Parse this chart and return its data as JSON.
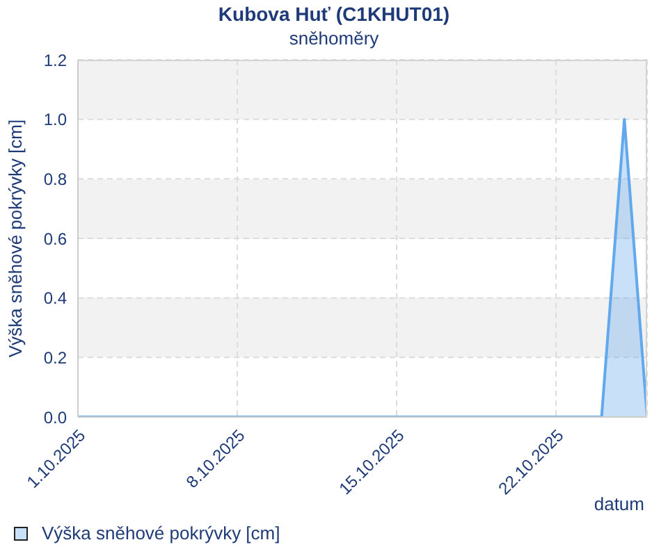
{
  "chart_data": {
    "type": "area",
    "title": "Kubova Huť (C1KHUT01)",
    "subtitle": "sněhoměry",
    "xlabel": "datum",
    "ylabel": "Výška sněhové pokrývky [cm]",
    "x": [
      "2025-10-01",
      "2025-10-02",
      "2025-10-03",
      "2025-10-04",
      "2025-10-05",
      "2025-10-06",
      "2025-10-07",
      "2025-10-08",
      "2025-10-09",
      "2025-10-10",
      "2025-10-11",
      "2025-10-12",
      "2025-10-13",
      "2025-10-14",
      "2025-10-15",
      "2025-10-16",
      "2025-10-17",
      "2025-10-18",
      "2025-10-19",
      "2025-10-20",
      "2025-10-21",
      "2025-10-22",
      "2025-10-23",
      "2025-10-24",
      "2025-10-25",
      "2025-10-26"
    ],
    "series": [
      {
        "name": "Výška sněhové pokrývky [cm]",
        "color": "#62a8ec",
        "values": [
          0,
          0,
          0,
          0,
          0,
          0,
          0,
          0,
          0,
          0,
          0,
          0,
          0,
          0,
          0,
          0,
          0,
          0,
          0,
          0,
          0,
          0,
          0,
          0,
          1.0,
          0
        ]
      }
    ],
    "xlim": [
      "2025-10-01",
      "2025-10-26"
    ],
    "xticks": [
      {
        "value": "2025-10-01",
        "label": "1.10.2025"
      },
      {
        "value": "2025-10-08",
        "label": "8.10.2025"
      },
      {
        "value": "2025-10-15",
        "label": "15.10.2025"
      },
      {
        "value": "2025-10-22",
        "label": "22.10.2025"
      }
    ],
    "ylim": [
      0,
      1.2
    ],
    "yticks": [
      {
        "value": 0,
        "label": "0.0"
      },
      {
        "value": 0.2,
        "label": "0.2"
      },
      {
        "value": 0.4,
        "label": "0.4"
      },
      {
        "value": 0.6,
        "label": "0.6"
      },
      {
        "value": 0.8,
        "label": "0.8"
      },
      {
        "value": 1.0,
        "label": "1.0"
      },
      {
        "value": 1.2,
        "label": "1.2"
      }
    ],
    "grid": true,
    "legend": "bottom left"
  }
}
